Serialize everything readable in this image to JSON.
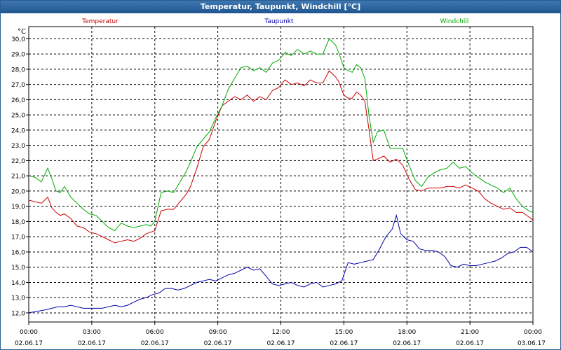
{
  "window": {
    "title": "Temperatur, Taupunkt, Windchill [°C]"
  },
  "chart_data": {
    "type": "line",
    "title": "Temperatur, Taupunkt, Windchill [°C]",
    "ylabel": "°C",
    "xlabel": "",
    "ylim": [
      11.4,
      30.8
    ],
    "xlim": [
      0,
      24
    ],
    "grid": true,
    "legend": "top",
    "y_ticks": [
      "12,0",
      "13,0",
      "14,0",
      "15,0",
      "16,0",
      "17,0",
      "18,0",
      "19,0",
      "20,0",
      "21,0",
      "22,0",
      "23,0",
      "24,0",
      "25,0",
      "26,0",
      "27,0",
      "28,0",
      "29,0",
      "30,0"
    ],
    "x_ticks": [
      {
        "time": "00:00",
        "date": "02.06.17"
      },
      {
        "time": "03:00",
        "date": "02.06.17"
      },
      {
        "time": "06:00",
        "date": "02.06.17"
      },
      {
        "time": "09:00",
        "date": "02.06.17"
      },
      {
        "time": "12:00",
        "date": "02.06.17"
      },
      {
        "time": "15:00",
        "date": "02.06.17"
      },
      {
        "time": "18:00",
        "date": "02.06.17"
      },
      {
        "time": "21:00",
        "date": "02.06.17"
      },
      {
        "time": "00:00",
        "date": "03.06.17"
      }
    ],
    "series": [
      {
        "name": "Temperatur",
        "color": "#cc0000",
        "x": [
          0,
          0.3,
          0.6,
          0.9,
          1.1,
          1.3,
          1.5,
          1.7,
          2,
          2.3,
          2.6,
          2.9,
          3.2,
          3.5,
          3.8,
          4.1,
          4.4,
          4.7,
          5,
          5.3,
          5.6,
          5.8,
          6,
          6.3,
          6.6,
          6.9,
          7.2,
          7.5,
          7.7,
          8,
          8.3,
          8.6,
          8.9,
          9.2,
          9.5,
          9.8,
          10.1,
          10.4,
          10.7,
          11,
          11.3,
          11.6,
          11.9,
          12.2,
          12.5,
          12.8,
          13.1,
          13.4,
          13.7,
          14,
          14.3,
          14.6,
          14.75,
          15,
          15.2,
          15.4,
          15.6,
          15.8,
          16,
          16.2,
          16.4,
          16.6,
          16.9,
          17.2,
          17.5,
          17.8,
          18.1,
          18.4,
          18.7,
          19,
          19.3,
          19.6,
          19.9,
          20.2,
          20.5,
          20.8,
          21.1,
          21.4,
          21.7,
          22,
          22.3,
          22.6,
          22.9,
          23.2,
          23.5,
          23.8,
          24
        ],
        "values": [
          19.4,
          19.3,
          19.2,
          19.6,
          18.9,
          18.6,
          18.4,
          18.5,
          18.2,
          17.7,
          17.6,
          17.3,
          17.2,
          17,
          16.8,
          16.6,
          16.7,
          16.8,
          16.7,
          16.9,
          17.2,
          17.3,
          17.4,
          18.7,
          18.8,
          18.8,
          19.3,
          19.8,
          20.3,
          21.5,
          22.9,
          23.4,
          24.6,
          25.6,
          25.9,
          26.2,
          26.0,
          26.3,
          25.9,
          26.2,
          26.0,
          26.6,
          26.8,
          27.3,
          27.0,
          27.1,
          26.9,
          27.3,
          27.1,
          27.1,
          27.9,
          27.5,
          27.2,
          26.3,
          26.1,
          26.1,
          26.5,
          26.3,
          25.9,
          24.0,
          22.0,
          22.1,
          22.3,
          21.9,
          22.1,
          21.7,
          20.8,
          20.1,
          20.0,
          20.2,
          20.2,
          20.2,
          20.3,
          20.3,
          20.2,
          20.4,
          20.2,
          20.0,
          19.5,
          19.2,
          19.0,
          18.8,
          18.9,
          18.6,
          18.6,
          18.3,
          18.1
        ]
      },
      {
        "name": "Taupunkt",
        "color": "#0000aa",
        "x": [
          0,
          0.4,
          0.8,
          1.1,
          1.4,
          1.7,
          2,
          2.3,
          2.6,
          2.9,
          3.2,
          3.5,
          3.8,
          4.1,
          4.4,
          4.7,
          5,
          5.3,
          5.6,
          5.9,
          6.2,
          6.5,
          6.8,
          7.1,
          7.4,
          7.7,
          8,
          8.3,
          8.6,
          8.9,
          9.2,
          9.5,
          9.8,
          10.1,
          10.4,
          10.7,
          11,
          11.3,
          11.6,
          11.9,
          12.2,
          12.5,
          12.8,
          13.1,
          13.4,
          13.7,
          14,
          14.3,
          14.6,
          14.9,
          15.2,
          15.5,
          15.8,
          16.1,
          16.4,
          16.7,
          17,
          17.3,
          17.5,
          17.7,
          18,
          18.3,
          18.6,
          18.9,
          19.2,
          19.5,
          19.8,
          20.1,
          20.4,
          20.7,
          21,
          21.3,
          21.6,
          21.9,
          22.2,
          22.5,
          22.8,
          23.1,
          23.4,
          23.7,
          24
        ],
        "values": [
          12.0,
          12.1,
          12.2,
          12.3,
          12.4,
          12.4,
          12.5,
          12.4,
          12.3,
          12.3,
          12.3,
          12.3,
          12.4,
          12.5,
          12.4,
          12.5,
          12.7,
          12.9,
          13.0,
          13.2,
          13.3,
          13.6,
          13.6,
          13.5,
          13.6,
          13.8,
          14.0,
          14.1,
          14.2,
          14.1,
          14.3,
          14.5,
          14.6,
          14.8,
          15.0,
          14.8,
          14.9,
          14.4,
          13.9,
          13.8,
          13.9,
          14.0,
          13.8,
          13.7,
          13.9,
          14.0,
          13.7,
          13.8,
          13.9,
          14.1,
          15.3,
          15.2,
          15.3,
          15.4,
          15.5,
          16.2,
          17.0,
          17.5,
          18.4,
          17.2,
          16.8,
          16.7,
          16.2,
          16.1,
          16.1,
          16.0,
          15.7,
          15.1,
          15.0,
          15.2,
          15.1,
          15.1,
          15.2,
          15.3,
          15.4,
          15.6,
          15.9,
          16.0,
          16.3,
          16.3,
          16.0
        ]
      },
      {
        "name": "Windchill",
        "color": "#00aa00",
        "x": [
          0,
          0.3,
          0.6,
          0.9,
          1.1,
          1.3,
          1.5,
          1.7,
          2,
          2.3,
          2.6,
          2.9,
          3.2,
          3.5,
          3.8,
          4.1,
          4.4,
          4.7,
          5,
          5.3,
          5.6,
          5.8,
          6,
          6.3,
          6.6,
          6.9,
          7.2,
          7.5,
          7.7,
          8,
          8.3,
          8.6,
          8.9,
          9.2,
          9.5,
          9.8,
          10.1,
          10.4,
          10.7,
          11,
          11.3,
          11.6,
          11.9,
          12.2,
          12.5,
          12.8,
          13.1,
          13.4,
          13.7,
          14,
          14.3,
          14.6,
          14.75,
          15,
          15.2,
          15.4,
          15.6,
          15.8,
          16,
          16.2,
          16.4,
          16.6,
          16.9,
          17.2,
          17.5,
          17.8,
          18.1,
          18.4,
          18.7,
          19,
          19.3,
          19.6,
          19.9,
          20.2,
          20.5,
          20.8,
          21.1,
          21.4,
          21.7,
          22,
          22.3,
          22.6,
          22.9,
          23.2,
          23.5,
          23.8,
          24
        ],
        "values": [
          21.0,
          20.9,
          20.6,
          21.5,
          20.8,
          20.0,
          19.9,
          20.3,
          19.6,
          19.2,
          18.8,
          18.5,
          18.4,
          18.0,
          17.6,
          17.4,
          17.9,
          17.7,
          17.6,
          17.7,
          17.8,
          17.7,
          18.0,
          19.9,
          20.0,
          19.9,
          20.6,
          21.3,
          21.9,
          22.9,
          23.4,
          23.9,
          24.8,
          25.6,
          26.7,
          27.4,
          28.1,
          28.2,
          27.9,
          28.1,
          27.8,
          28.4,
          28.6,
          29.1,
          28.9,
          29.3,
          29.0,
          29.2,
          29.0,
          29.0,
          30.0,
          29.6,
          29.1,
          28.1,
          27.9,
          27.8,
          28.3,
          28.1,
          27.4,
          24.9,
          23.2,
          23.9,
          24.0,
          22.8,
          22.8,
          22.8,
          21.7,
          20.7,
          20.3,
          20.9,
          21.2,
          21.4,
          21.5,
          21.9,
          21.5,
          21.6,
          21.2,
          20.9,
          20.6,
          20.4,
          20.2,
          19.9,
          20.2,
          19.5,
          19.0,
          18.7,
          18.6
        ]
      }
    ]
  }
}
